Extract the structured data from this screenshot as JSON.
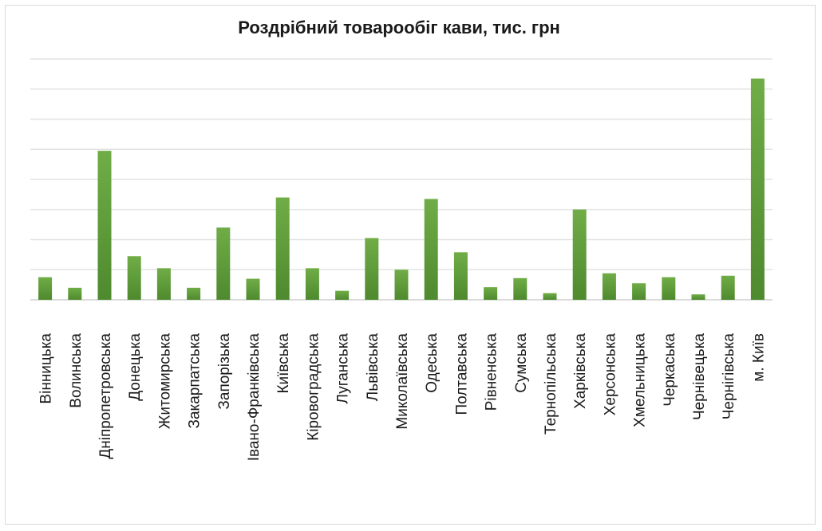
{
  "chart_data": {
    "type": "bar",
    "title": "Роздрібний товарообіг кави, тис. грн",
    "xlabel": "",
    "ylabel": "",
    "ylim": [
      0,
      8
    ],
    "grid": true,
    "legend": "none",
    "color": "#70ad47",
    "categories": [
      "Вінницька",
      "Волинська",
      "Дніпропетровська",
      "Донецька",
      "Житомирська",
      "Закарпатська",
      "Запорізька",
      "Івано-Франківська",
      "Київська",
      "Кіровоградська",
      "Луганська",
      "Львівська",
      "Миколаївська",
      "Одеська",
      "Полтавська",
      "Рівненська",
      "Сумська",
      "Тернопільська",
      "Харківська",
      "Херсонська",
      "Хмельницька",
      "Черкаська",
      "Чернівецька",
      "Чернігівська",
      "м. Київ"
    ],
    "values": [
      0.75,
      0.4,
      4.95,
      1.45,
      1.05,
      0.4,
      2.4,
      0.7,
      3.4,
      1.05,
      0.3,
      2.05,
      1.0,
      3.35,
      1.58,
      0.42,
      0.72,
      0.22,
      3.0,
      0.88,
      0.55,
      0.75,
      0.18,
      0.8,
      7.35
    ]
  }
}
